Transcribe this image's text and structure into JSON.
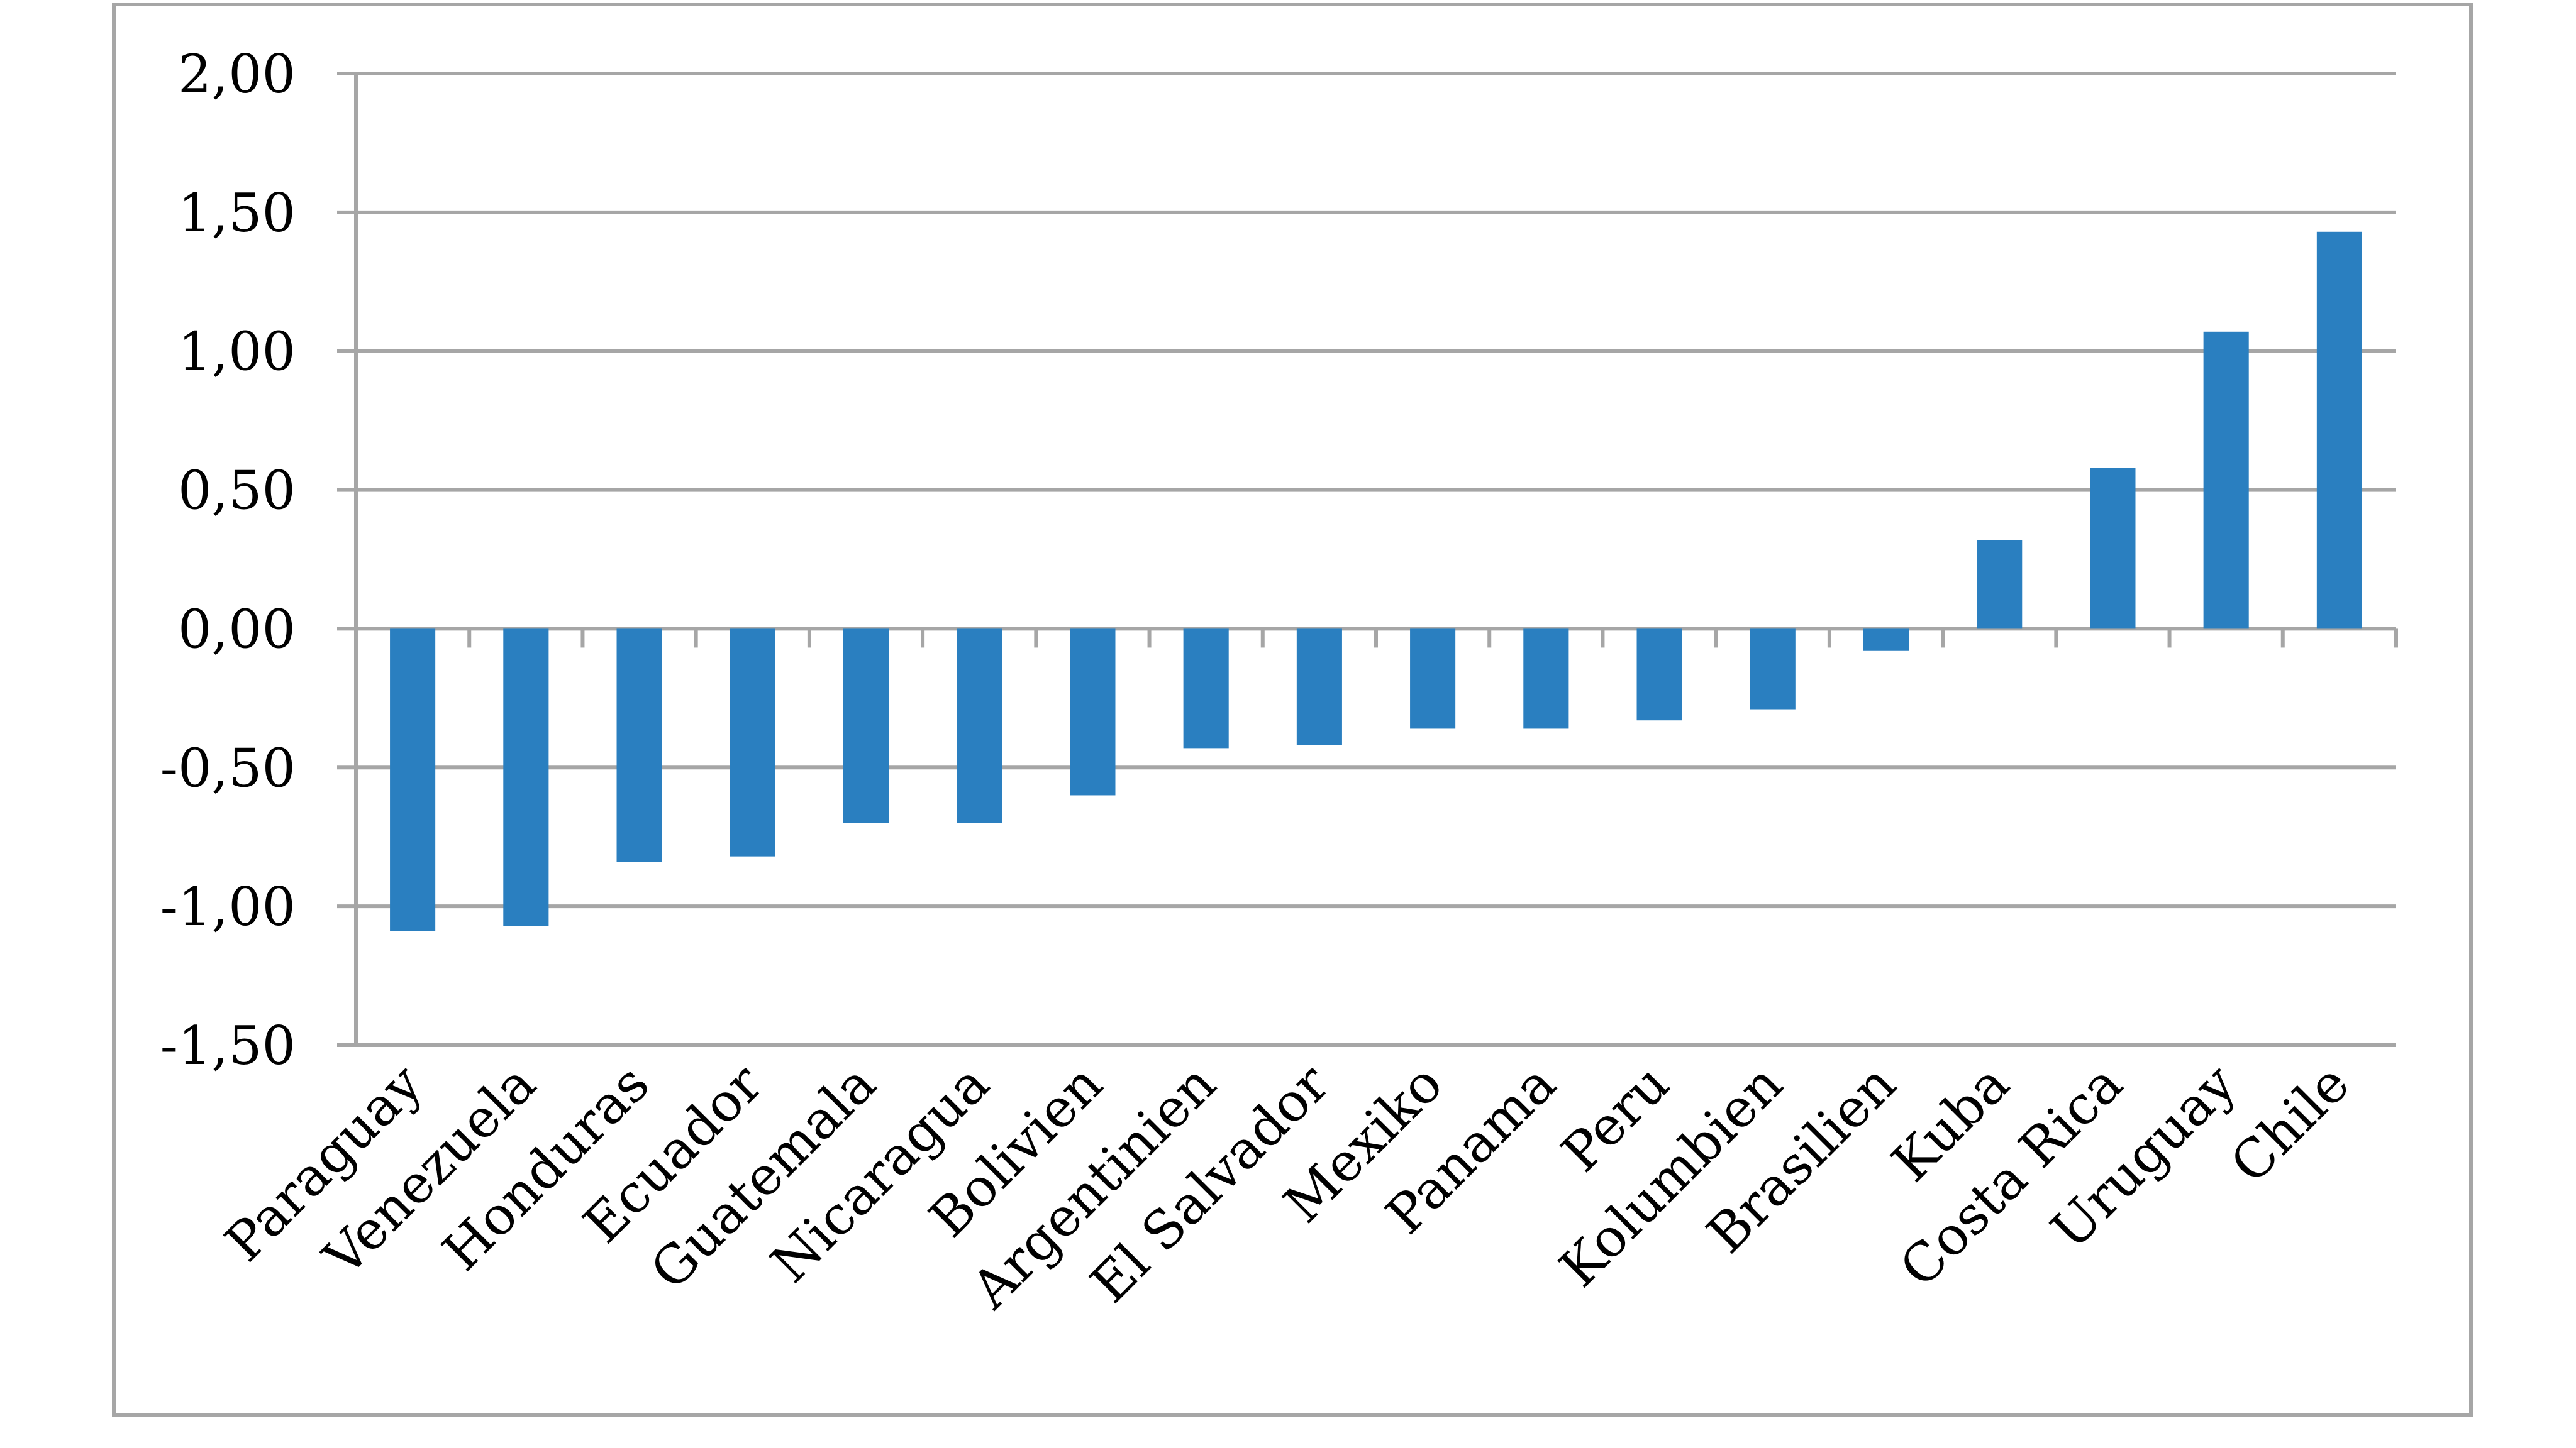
{
  "chart_data": {
    "type": "bar",
    "title": "",
    "xlabel": "",
    "ylabel": "",
    "ylim": [
      -1.5,
      2.0
    ],
    "yticks": [
      -1.5,
      -1.0,
      -0.5,
      0.0,
      0.5,
      1.0,
      1.5,
      2.0
    ],
    "ytick_labels": [
      "-1,50",
      "-1,00",
      "-0,50",
      "0,00",
      "0,50",
      "1,00",
      "1,50",
      "2,00"
    ],
    "grid": true,
    "legend": "none",
    "bar_color": "#2a7fc0",
    "categories": [
      "Paraguay",
      "Venezuela",
      "Honduras",
      "Ecuador",
      "Guatemala",
      "Nicaragua",
      "Bolivien",
      "Argentinien",
      "El Salvador",
      "Mexiko",
      "Panama",
      "Peru",
      "Kolumbien",
      "Brasilien",
      "Kuba",
      "Costa Rica",
      "Uruguay",
      "Chile"
    ],
    "values": [
      -1.09,
      -1.07,
      -0.84,
      -0.82,
      -0.7,
      -0.7,
      -0.6,
      -0.43,
      -0.42,
      -0.36,
      -0.36,
      -0.33,
      -0.29,
      -0.08,
      0.32,
      0.58,
      1.07,
      1.43
    ]
  }
}
